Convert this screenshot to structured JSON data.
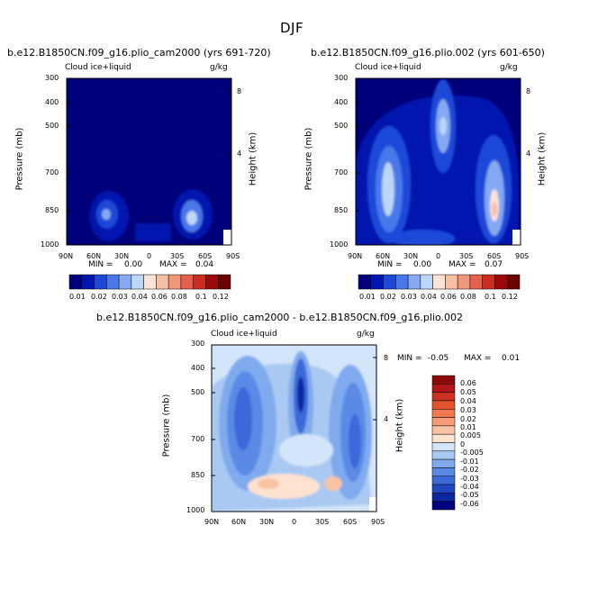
{
  "figure": {
    "title": "DJF",
    "variable": "Cloud ice+liquid",
    "units": "g/kg",
    "ylabel": "Pressure (mb)",
    "ylabel2": "Height (km)"
  },
  "chart_data": [
    {
      "type": "heatmap",
      "title": "b.e12.B1850CN.f09_g16.plio_cam2000 (yrs 691-720)",
      "subtitle": "Cloud ice+liquid",
      "units": "g/kg",
      "xlabel": "",
      "ylabel": "Pressure (mb)",
      "ylabel_right": "Height (km)",
      "x_ticks": [
        "90N",
        "60N",
        "30N",
        "0",
        "30S",
        "60S",
        "90S"
      ],
      "y_ticks": [
        "300",
        "400",
        "500",
        "700",
        "850",
        "1000"
      ],
      "y2_ticks": [
        "8",
        "4"
      ],
      "ylim": [
        1000,
        300
      ],
      "min_label": "MIN =",
      "min_value": "0.00",
      "max_label": "MAX =",
      "max_value": "0.04",
      "colorbar_labels": [
        "0.01",
        "0.02",
        "0.03",
        "0.04",
        "0.06",
        "0.08",
        "0.1",
        "0.12"
      ],
      "colorbar_colors": [
        "#00007a",
        "#0016ae",
        "#1c48d8",
        "#4a78ea",
        "#84a8f2",
        "#bcd6f8",
        "#fbe3d6",
        "#f7c0a5",
        "#f2967a",
        "#e3614a",
        "#c92c20",
        "#9b0a08",
        "#6b0000"
      ],
      "features": [
        {
          "lat": 40,
          "p": 855,
          "value": 0.03
        },
        {
          "lat": -48,
          "p": 855,
          "value": 0.04
        }
      ]
    },
    {
      "type": "heatmap",
      "title": "b.e12.B1850CN.f09_g16.plio.002 (yrs 601-650)",
      "subtitle": "Cloud ice+liquid",
      "units": "g/kg",
      "xlabel": "",
      "ylabel": "Pressure (mb)",
      "ylabel_right": "Height (km)",
      "x_ticks": [
        "90N",
        "60N",
        "30N",
        "0",
        "30S",
        "60S",
        "90S"
      ],
      "y_ticks": [
        "300",
        "400",
        "500",
        "700",
        "850",
        "1000"
      ],
      "y2_ticks": [
        "8",
        "4"
      ],
      "ylim": [
        1000,
        300
      ],
      "min_label": "MIN =",
      "min_value": "0.00",
      "max_label": "MAX =",
      "max_value": "0.07",
      "colorbar_labels": [
        "0.01",
        "0.02",
        "0.03",
        "0.04",
        "0.06",
        "0.08",
        "0.1",
        "0.12"
      ],
      "colorbar_colors": [
        "#00007a",
        "#0016ae",
        "#1c48d8",
        "#4a78ea",
        "#84a8f2",
        "#bcd6f8",
        "#fbe3d6",
        "#f7c0a5",
        "#f2967a",
        "#e3614a",
        "#c92c20",
        "#9b0a08",
        "#6b0000"
      ],
      "features": [
        {
          "lat": 50,
          "p": 720,
          "value": 0.06
        },
        {
          "lat": 5,
          "p": 480,
          "value": 0.06
        },
        {
          "lat": -60,
          "p": 820,
          "value": 0.07
        }
      ]
    },
    {
      "type": "heatmap",
      "title": "b.e12.B1850CN.f09_g16.plio_cam2000 - b.e12.B1850CN.f09_g16.plio.002",
      "subtitle": "Cloud ice+liquid",
      "units": "g/kg",
      "xlabel": "",
      "ylabel": "Pressure (mb)",
      "ylabel_right": "Height (km)",
      "x_ticks": [
        "90N",
        "60N",
        "30N",
        "0",
        "30S",
        "60S",
        "90S"
      ],
      "y_ticks": [
        "300",
        "400",
        "500",
        "700",
        "850",
        "1000"
      ],
      "y2_ticks": [
        "8",
        "4"
      ],
      "ylim": [
        1000,
        300
      ],
      "min_label": "MIN =",
      "min_value": "-0.05",
      "max_label": "MAX =",
      "max_value": "0.01",
      "colorbar_labels": [
        "0.06",
        "0.05",
        "0.04",
        "0.03",
        "0.02",
        "0.01",
        "0.005",
        "0",
        "-0.005",
        "-0.01",
        "-0.02",
        "-0.03",
        "-0.04",
        "-0.05",
        "-0.06"
      ],
      "colorbar_colors": [
        "#8c0a0a",
        "#b01818",
        "#cc3020",
        "#e0542f",
        "#ee7a4e",
        "#f59c75",
        "#f9c2a2",
        "#fde2cf",
        "#d3e5f8",
        "#a9c9f3",
        "#80aaee",
        "#5a8ae6",
        "#3a69d9",
        "#1f47c2",
        "#0c25a2",
        "#000080"
      ],
      "features": [
        {
          "lat": 30,
          "p": 860,
          "value": 0.01
        },
        {
          "lat": -45,
          "p": 860,
          "value": 0.01
        },
        {
          "lat": 0,
          "p": 500,
          "value": -0.05
        }
      ]
    }
  ]
}
